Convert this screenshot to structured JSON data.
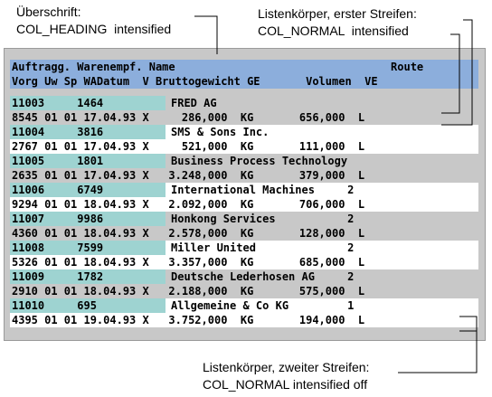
{
  "callouts": {
    "heading": "Überschrift:\nCOL_HEADING  intensified",
    "stripe1": "Listenkörper, erster Streifen:\nCOL_NORMAL  intensified",
    "stripe2": "Listenkörper, zweiter Streifen:\nCOL_NORMAL intensified off"
  },
  "header": {
    "line1": "Auftragg. Warenempf. Name                                 Route",
    "line2": "Vorg Uw Sp WADatum  V Bruttogewicht GE       Volumen  VE"
  },
  "records": [
    {
      "line1_left": "11003     1464     ",
      "line1_right": "FRED AG",
      "line2": "8545 01 01 17.04.93 X     286,000  KG       656,000  L",
      "stripe": "grey"
    },
    {
      "line1_left": "11004     3816     ",
      "line1_right": "SMS & Sons Inc.",
      "line2": "2767 01 01 17.04.93 X     521,000  KG       111,000  L",
      "stripe": "white"
    },
    {
      "line1_left": "11005     1801     ",
      "line1_right": "Business Process Technology",
      "line2": "2635 01 01 17.04.93 X   3.248,000  KG       379,000  L",
      "stripe": "grey"
    },
    {
      "line1_left": "11006     6749     ",
      "line1_right": "International Machines     2",
      "line2": "9294 01 01 18.04.93 X   2.092,000  KG       706,000  L",
      "stripe": "white"
    },
    {
      "line1_left": "11007     9986     ",
      "line1_right": "Honkong Services           2",
      "line2": "4360 01 01 18.04.93 X   2.578,000  KG       128,000  L",
      "stripe": "grey"
    },
    {
      "line1_left": "11008     7599     ",
      "line1_right": "Miller United              2",
      "line2": "5326 01 01 18.04.93 X   3.357,000  KG       685,000  L",
      "stripe": "white"
    },
    {
      "line1_left": "11009     1782     ",
      "line1_right": "Deutsche Lederhosen AG     2",
      "line2": "2910 01 01 18.04.93 X   2.188,000  KG       575,000  L",
      "stripe": "grey"
    },
    {
      "line1_left": "11010     695      ",
      "line1_right": "Allgemeine & Co KG         1",
      "line2": "4395 01 01 19.04.93 X   3.752,000  KG       194,000  L",
      "stripe": "white"
    }
  ],
  "colors": {
    "heading_bg": "#8caedc",
    "teal": "#9ed3d1",
    "grey": "#c8c8c8",
    "white": "#ffffff"
  }
}
